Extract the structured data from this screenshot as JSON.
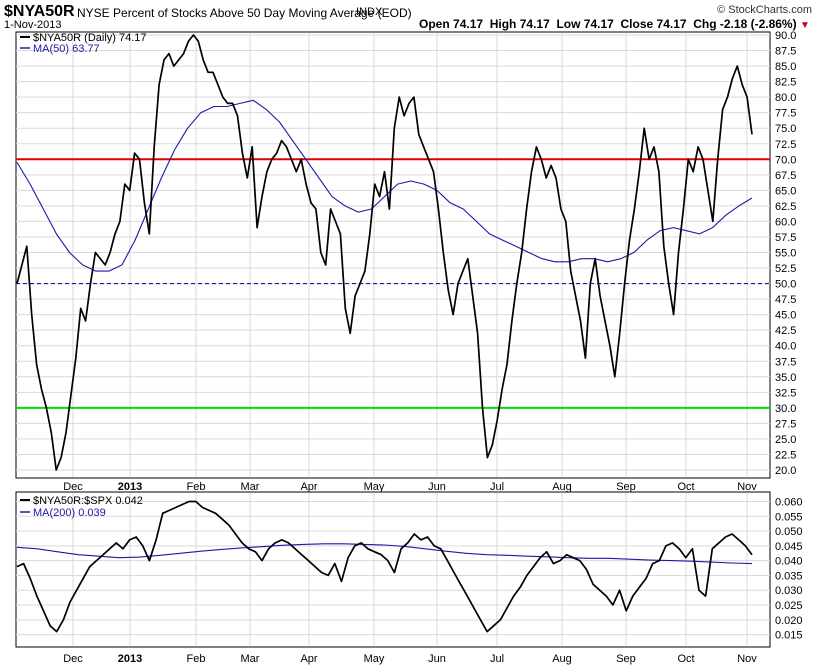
{
  "header": {
    "symbol": "$NYA50R",
    "description": "NYSE Percent of Stocks Above 50 Day Moving Average (EOD)",
    "exchange": "INDX",
    "date": "1-Nov-2013",
    "brand": "© StockCharts.com",
    "quote": {
      "open_label": "Open",
      "open": "74.17",
      "high_label": "High",
      "high": "74.17",
      "low_label": "Low",
      "low": "74.17",
      "close_label": "Close",
      "close": "74.17",
      "chg_label": "Chg",
      "chg": "-2.18 (-2.86%)",
      "chg_arrow": "▼"
    }
  },
  "colors": {
    "price": "#000000",
    "ma": "#1a1aa6",
    "overbought": "#dd0000",
    "oversold": "#00dd00",
    "midline": "#1a1aa6",
    "grid": "#d9d9d9",
    "chg_arrow": "#c0001a"
  },
  "chart_data": [
    {
      "type": "line",
      "panel": "main",
      "x_labels": [
        "Dec",
        "2013",
        "Feb",
        "Mar",
        "Apr",
        "May",
        "Jun",
        "Jul",
        "Aug",
        "Sep",
        "Oct",
        "Nov"
      ],
      "x_label_positions": [
        0.1,
        0.2,
        0.33,
        0.44,
        0.57,
        0.71,
        0.84,
        1.0,
        1.12,
        1.26,
        1.37,
        1.45
      ],
      "y_ticks": [
        "90.0",
        "87.5",
        "85.0",
        "82.5",
        "80.0",
        "77.5",
        "75.0",
        "72.5",
        "70.0",
        "67.5",
        "65.0",
        "62.5",
        "60.0",
        "57.5",
        "55.0",
        "52.5",
        "50.0",
        "47.5",
        "45.0",
        "42.5",
        "40.0",
        "37.5",
        "35.0",
        "32.5",
        "30.0",
        "27.5",
        "25.0",
        "22.5",
        "20.0"
      ],
      "ylim": [
        20,
        90
      ],
      "grid": true,
      "legend_position": "top-left",
      "reference_lines": [
        {
          "value": 70,
          "color": "#dd0000",
          "style": "solid"
        },
        {
          "value": 50,
          "color": "#1a1aa6",
          "style": "dashed"
        },
        {
          "value": 30,
          "color": "#00dd00",
          "style": "solid"
        }
      ],
      "series": [
        {
          "name": "$NYA50R (Daily) 74.17",
          "color": "#000000",
          "values": [
            50,
            53,
            56,
            45,
            37,
            33,
            30,
            26,
            20,
            22,
            26,
            32,
            38,
            46,
            44,
            50,
            55,
            54,
            53,
            55,
            58,
            60,
            66,
            65,
            71,
            70,
            63,
            58,
            72,
            82,
            86,
            87,
            85,
            86,
            87,
            89,
            90,
            89,
            86,
            84,
            84,
            82,
            80,
            79,
            79,
            77,
            71,
            67,
            72,
            59,
            64,
            68,
            70,
            71,
            73,
            72,
            70,
            68,
            70,
            66,
            63,
            62,
            55,
            53,
            62,
            60,
            58,
            46,
            42,
            48,
            50,
            52,
            58,
            66,
            64,
            68,
            62,
            75,
            80,
            77,
            79,
            80,
            74,
            72,
            70,
            68,
            62,
            55,
            49,
            45,
            50,
            52,
            54,
            48,
            42,
            30,
            22,
            24,
            28,
            33,
            37,
            44,
            50,
            55,
            62,
            68,
            72,
            70,
            67,
            69,
            67,
            62,
            60,
            52,
            48,
            44,
            38,
            50,
            54,
            48,
            44,
            40,
            35,
            42,
            50,
            57,
            62,
            68,
            75,
            70,
            72,
            68,
            56,
            50,
            45,
            55,
            62,
            70,
            68,
            72,
            70,
            65,
            60,
            70,
            78,
            80,
            83,
            85,
            82,
            80,
            74
          ],
          "last_value": 74.17
        },
        {
          "name": "MA(50) 63.77",
          "color": "#1a1aa6",
          "values": [
            69.5,
            66,
            62,
            58,
            55,
            53,
            52,
            52,
            53,
            57,
            62,
            67,
            71.5,
            75,
            77.5,
            78.5,
            78.5,
            79,
            79.5,
            78,
            76,
            73,
            70,
            67,
            64,
            62.5,
            61.5,
            62,
            64,
            66,
            66.5,
            66,
            65,
            63,
            62,
            60,
            58,
            57,
            56,
            55,
            54,
            53.5,
            53.5,
            54,
            54,
            53.5,
            54,
            55,
            57,
            58.5,
            59,
            58.5,
            58,
            59,
            61,
            62.5,
            63.77
          ],
          "last_value": 63.77
        }
      ]
    },
    {
      "type": "line",
      "panel": "ratio",
      "x_labels": [
        "Dec",
        "2013",
        "Feb",
        "Mar",
        "Apr",
        "May",
        "Jun",
        "Jul",
        "Aug",
        "Sep",
        "Oct",
        "Nov"
      ],
      "y_ticks": [
        "0.060",
        "0.055",
        "0.050",
        "0.045",
        "0.040",
        "0.035",
        "0.030",
        "0.025",
        "0.020",
        "0.015"
      ],
      "ylim": [
        0.0125,
        0.0605
      ],
      "grid": true,
      "legend_position": "top-left",
      "series": [
        {
          "name": "$NYA50R:$SPX 0.042",
          "color": "#000000",
          "values": [
            0.038,
            0.039,
            0.034,
            0.028,
            0.023,
            0.018,
            0.016,
            0.02,
            0.026,
            0.03,
            0.034,
            0.038,
            0.04,
            0.042,
            0.044,
            0.046,
            0.044,
            0.047,
            0.048,
            0.045,
            0.04,
            0.047,
            0.056,
            0.057,
            0.058,
            0.059,
            0.06,
            0.06,
            0.058,
            0.057,
            0.056,
            0.054,
            0.052,
            0.049,
            0.046,
            0.044,
            0.043,
            0.04,
            0.044,
            0.046,
            0.047,
            0.046,
            0.044,
            0.042,
            0.04,
            0.038,
            0.036,
            0.035,
            0.039,
            0.033,
            0.041,
            0.045,
            0.046,
            0.044,
            0.043,
            0.042,
            0.04,
            0.036,
            0.044,
            0.046,
            0.049,
            0.047,
            0.048,
            0.045,
            0.044,
            0.04,
            0.036,
            0.032,
            0.028,
            0.024,
            0.02,
            0.016,
            0.018,
            0.02,
            0.024,
            0.028,
            0.031,
            0.035,
            0.038,
            0.041,
            0.043,
            0.039,
            0.04,
            0.042,
            0.041,
            0.04,
            0.037,
            0.032,
            0.03,
            0.028,
            0.025,
            0.03,
            0.023,
            0.028,
            0.031,
            0.034,
            0.039,
            0.04,
            0.045,
            0.046,
            0.044,
            0.041,
            0.044,
            0.03,
            0.028,
            0.044,
            0.046,
            0.048,
            0.049,
            0.047,
            0.045,
            0.042
          ],
          "last_value": 0.042
        },
        {
          "name": "MA(200) 0.039",
          "color": "#1a1aa6",
          "values": [
            0.0445,
            0.044,
            0.043,
            0.042,
            0.0415,
            0.041,
            0.0412,
            0.0418,
            0.0425,
            0.0432,
            0.0438,
            0.0443,
            0.0447,
            0.0452,
            0.0455,
            0.0457,
            0.0457,
            0.0455,
            0.0453,
            0.0448,
            0.044,
            0.0432,
            0.0425,
            0.042,
            0.0418,
            0.0415,
            0.0413,
            0.041,
            0.0408,
            0.0408,
            0.0405,
            0.0402,
            0.04,
            0.0398,
            0.0395,
            0.0392,
            0.039
          ],
          "last_value": 0.039
        }
      ]
    }
  ]
}
